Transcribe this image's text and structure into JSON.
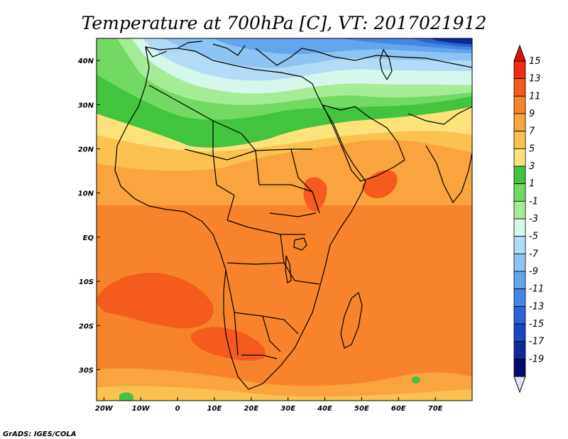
{
  "title": "Temperature at 700hPa [C], VT: 2017021912",
  "credit": "GrADS: IGES/COLA",
  "map": {
    "lon_range": [
      -22,
      80
    ],
    "lat_range": [
      -37,
      45
    ],
    "lat_ticks": [
      {
        "value": 40,
        "label": "40N"
      },
      {
        "value": 30,
        "label": "30N"
      },
      {
        "value": 20,
        "label": "20N"
      },
      {
        "value": 10,
        "label": "10N"
      },
      {
        "value": 0,
        "label": "EQ"
      },
      {
        "value": -10,
        "label": "10S"
      },
      {
        "value": -20,
        "label": "20S"
      },
      {
        "value": -30,
        "label": "30S"
      }
    ],
    "lon_ticks": [
      {
        "value": -20,
        "label": "20W"
      },
      {
        "value": -10,
        "label": "10W"
      },
      {
        "value": 0,
        "label": "0"
      },
      {
        "value": 10,
        "label": "10E"
      },
      {
        "value": 20,
        "label": "20E"
      },
      {
        "value": 30,
        "label": "30E"
      },
      {
        "value": 40,
        "label": "40E"
      },
      {
        "value": 50,
        "label": "50E"
      },
      {
        "value": 60,
        "label": "60E"
      },
      {
        "value": 70,
        "label": "70E"
      }
    ]
  },
  "colorbar": {
    "labels": [
      "15",
      "13",
      "11",
      "9",
      "7",
      "5",
      "3",
      "1",
      "-1",
      "-3",
      "-5",
      "-7",
      "-9",
      "-11",
      "-13",
      "-15",
      "-17",
      "-19"
    ],
    "colors": [
      "#f02a10",
      "#f55a1e",
      "#f7842a",
      "#f9a43c",
      "#fbc250",
      "#fde27c",
      "#43c43f",
      "#72da62",
      "#a4ec96",
      "#d6f8ec",
      "#b2dcf6",
      "#8cc4f4",
      "#64a6ee",
      "#4486e6",
      "#2a64d8",
      "#1a48c4",
      "#0c2a9a",
      "#000a6c"
    ],
    "top_arrow_color": "#dc1400",
    "bottom_arrow_color": "#e2e2ff"
  }
}
